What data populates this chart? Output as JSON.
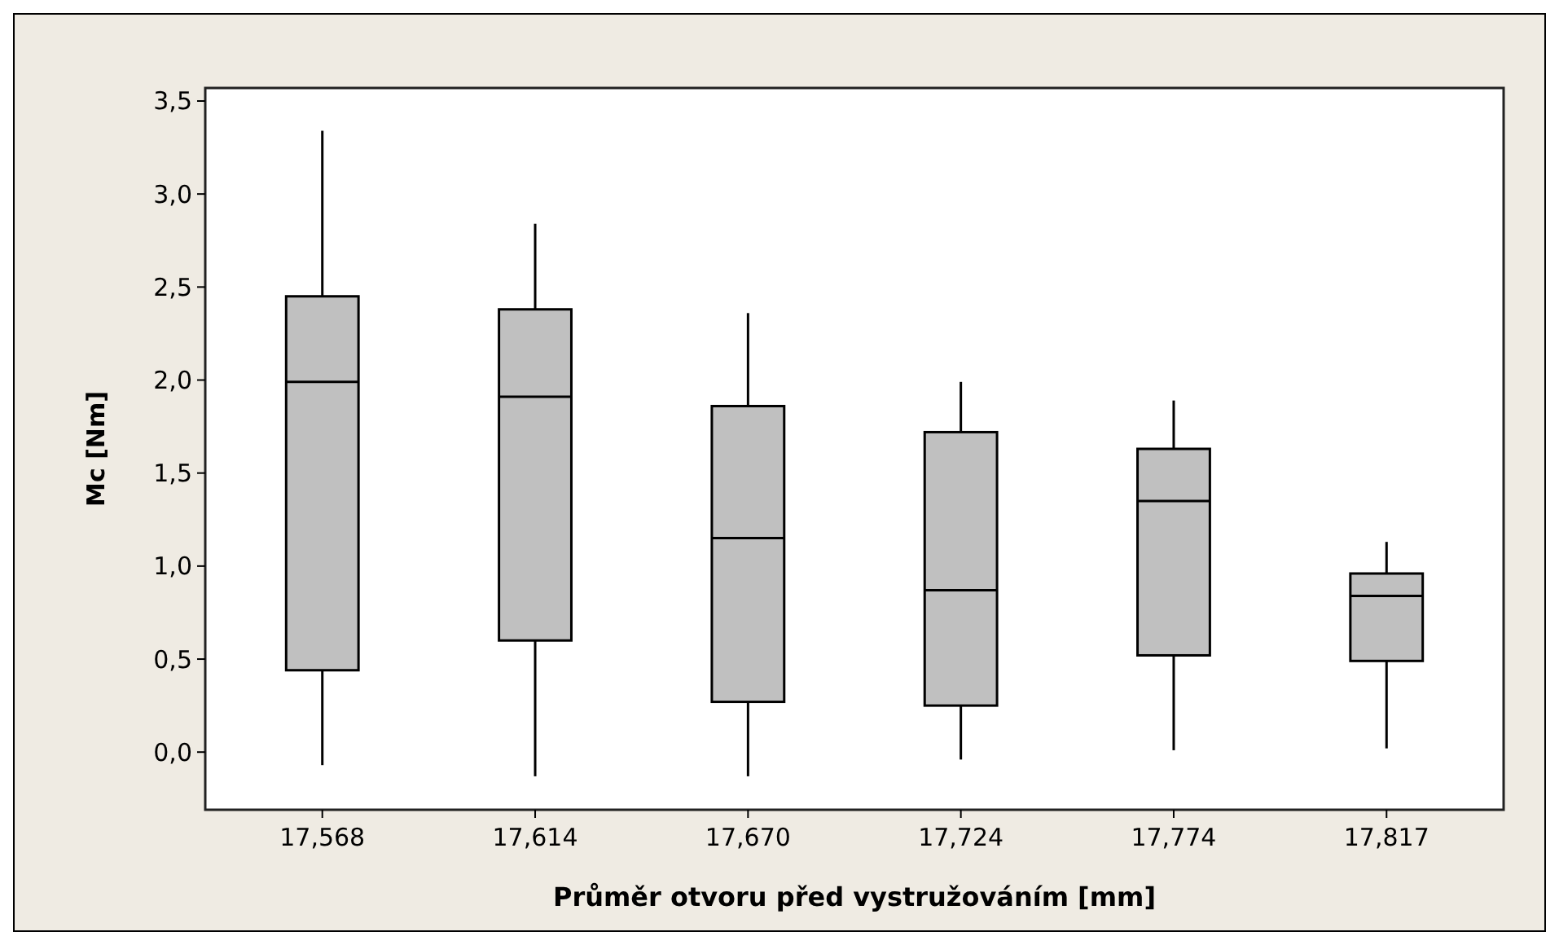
{
  "chart_data": {
    "type": "box",
    "xlabel": "Průměr otvoru před vystružováním [mm]",
    "ylabel": "Mc [Nm]",
    "categories": [
      "17,568",
      "17,614",
      "17,670",
      "17,724",
      "17,774",
      "17,817"
    ],
    "color": "#c0c0c0",
    "ylim": [
      -0.31,
      3.57
    ],
    "yticks": [
      {
        "value": 0,
        "label": "0,0"
      },
      {
        "value": 0.5,
        "label": "0,5"
      },
      {
        "value": 1,
        "label": "1,0"
      },
      {
        "value": 1.5,
        "label": "1,5"
      },
      {
        "value": 2,
        "label": "2,0"
      },
      {
        "value": 2.5,
        "label": "2,5"
      },
      {
        "value": 3,
        "label": "3,0"
      },
      {
        "value": 3.5,
        "label": "3,5"
      }
    ],
    "grid": false,
    "boxes": [
      {
        "low": -0.07,
        "q1": 0.44,
        "median": 1.99,
        "q3": 2.45,
        "high": 3.34
      },
      {
        "low": -0.13,
        "q1": 0.6,
        "median": 1.91,
        "q3": 2.38,
        "high": 2.84
      },
      {
        "low": -0.13,
        "q1": 0.27,
        "median": 1.15,
        "q3": 1.86,
        "high": 2.36
      },
      {
        "low": -0.04,
        "q1": 0.25,
        "median": 0.87,
        "q3": 1.72,
        "high": 1.99
      },
      {
        "low": 0.01,
        "q1": 0.52,
        "median": 1.35,
        "q3": 1.63,
        "high": 1.89
      },
      {
        "low": 0.02,
        "q1": 0.49,
        "median": 0.84,
        "q3": 0.96,
        "high": 1.13
      }
    ]
  }
}
